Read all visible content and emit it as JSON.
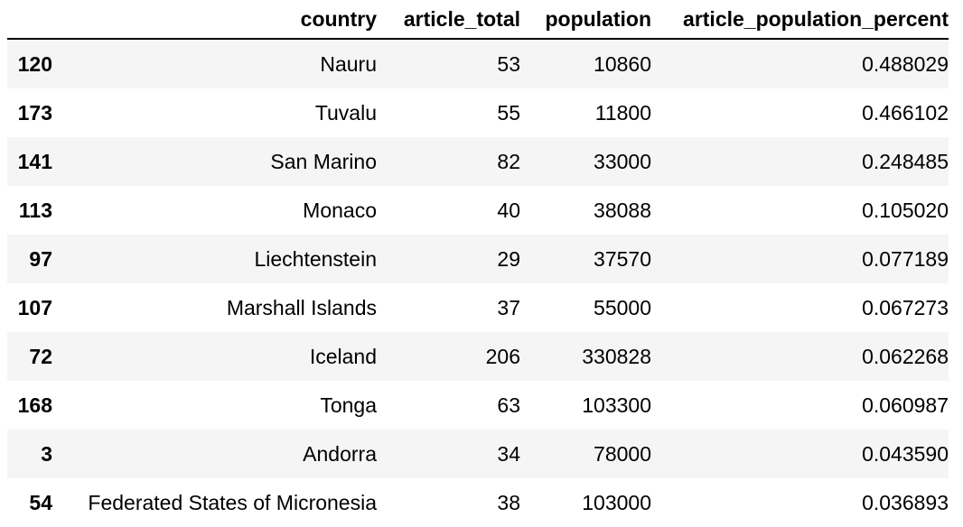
{
  "table": {
    "columns": {
      "index": "",
      "country": "country",
      "article_total": "article_total",
      "population": "population",
      "article_population_percent": "article_population_percent"
    },
    "rows": [
      {
        "index": "120",
        "country": "Nauru",
        "article_total": "53",
        "population": "10860",
        "article_population_percent": "0.488029"
      },
      {
        "index": "173",
        "country": "Tuvalu",
        "article_total": "55",
        "population": "11800",
        "article_population_percent": "0.466102"
      },
      {
        "index": "141",
        "country": "San Marino",
        "article_total": "82",
        "population": "33000",
        "article_population_percent": "0.248485"
      },
      {
        "index": "113",
        "country": "Monaco",
        "article_total": "40",
        "population": "38088",
        "article_population_percent": "0.105020"
      },
      {
        "index": "97",
        "country": "Liechtenstein",
        "article_total": "29",
        "population": "37570",
        "article_population_percent": "0.077189"
      },
      {
        "index": "107",
        "country": "Marshall Islands",
        "article_total": "37",
        "population": "55000",
        "article_population_percent": "0.067273"
      },
      {
        "index": "72",
        "country": "Iceland",
        "article_total": "206",
        "population": "330828",
        "article_population_percent": "0.062268"
      },
      {
        "index": "168",
        "country": "Tonga",
        "article_total": "63",
        "population": "103300",
        "article_population_percent": "0.060987"
      },
      {
        "index": "3",
        "country": "Andorra",
        "article_total": "34",
        "population": "78000",
        "article_population_percent": "0.043590"
      },
      {
        "index": "54",
        "country": "Federated States of Micronesia",
        "article_total": "38",
        "population": "103000",
        "article_population_percent": "0.036893"
      }
    ]
  }
}
